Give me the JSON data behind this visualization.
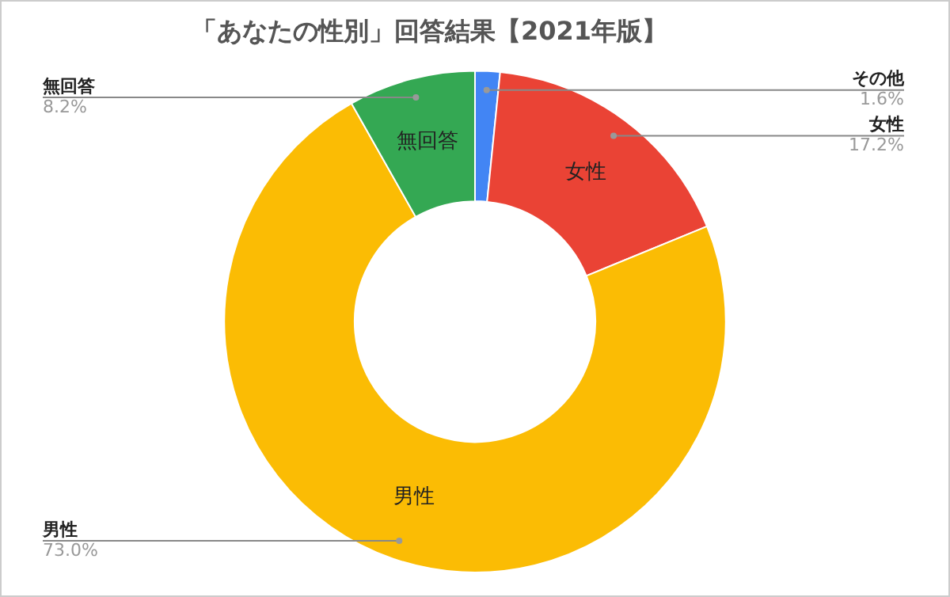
{
  "chart_data": {
    "type": "donut",
    "title": "「あなたの性別」回答結果【2021年版】",
    "categories": [
      "その他",
      "女性",
      "男性",
      "無回答"
    ],
    "values": [
      1.6,
      17.2,
      73.0,
      8.2
    ],
    "colors": [
      "#4285f4",
      "#ea4335",
      "#fbbc04",
      "#34a853"
    ],
    "value_labels": [
      "1.6%",
      "17.2%",
      "73.0%",
      "8.2%"
    ],
    "legend": false
  }
}
